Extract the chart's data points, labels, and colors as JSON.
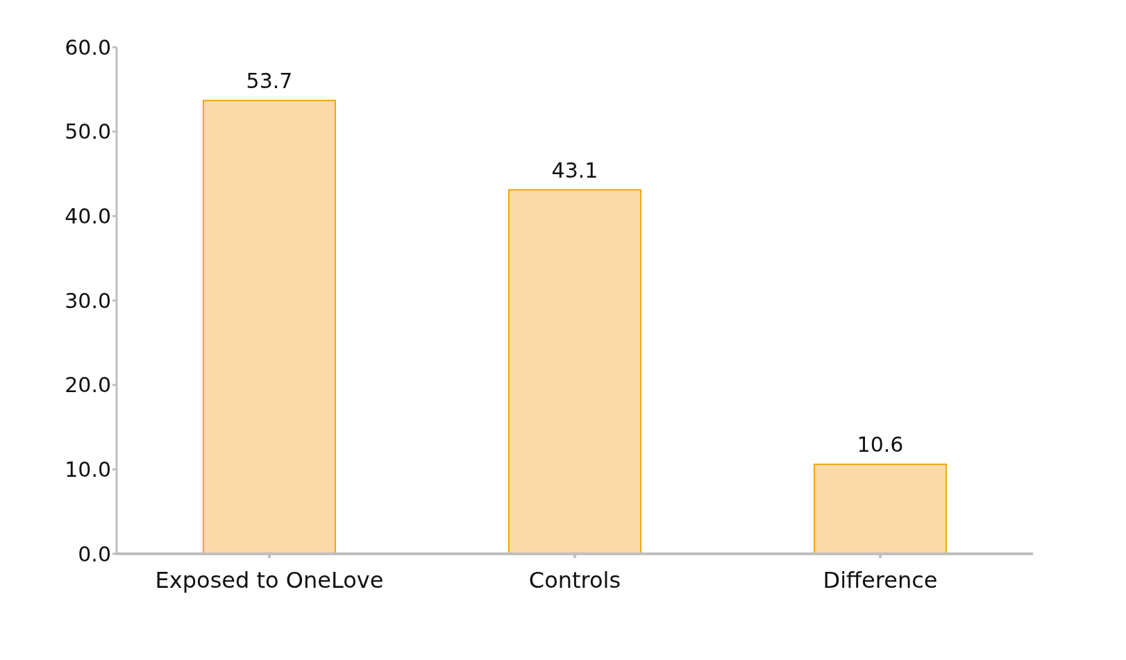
{
  "chart_data": {
    "type": "bar",
    "categories": [
      "Exposed to OneLove",
      "Controls",
      "Difference"
    ],
    "values": [
      53.7,
      43.1,
      10.6
    ],
    "color": "#fcdaa8",
    "data_labels": true,
    "ylim": [
      0,
      60
    ],
    "yticks": [
      {
        "value": 0,
        "label": "0.0"
      },
      {
        "value": 10,
        "label": "10.0"
      },
      {
        "value": 20,
        "label": "20.0"
      },
      {
        "value": 30,
        "label": "30.0"
      },
      {
        "value": 40,
        "label": "40.0"
      },
      {
        "value": 50,
        "label": "50.0"
      },
      {
        "value": 60,
        "label": "60.0"
      }
    ],
    "grid": false
  }
}
